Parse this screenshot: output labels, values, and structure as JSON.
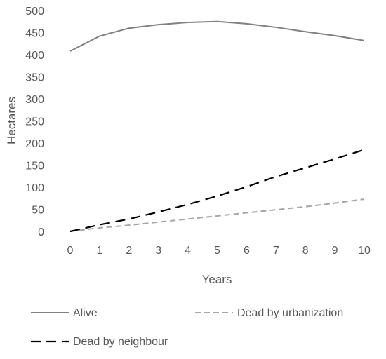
{
  "chart_data": {
    "type": "line",
    "title": "",
    "xlabel": "Years",
    "ylabel": "Hectares",
    "x": [
      0,
      1,
      2,
      3,
      4,
      5,
      6,
      7,
      8,
      9,
      10
    ],
    "xlim": [
      0,
      10
    ],
    "ylim": [
      0,
      500
    ],
    "yticks": [
      0,
      50,
      100,
      150,
      200,
      250,
      300,
      350,
      400,
      450,
      500
    ],
    "grid": false,
    "legend_position": "bottom",
    "series": [
      {
        "name": "Alive",
        "style": "solid",
        "color": "#808080",
        "values": [
          408,
          442,
          460,
          468,
          473,
          475,
          470,
          462,
          452,
          443,
          432
        ]
      },
      {
        "name": "Dead by urbanization",
        "style": "dashed",
        "color": "#a6a6a6",
        "values": [
          0,
          8,
          14,
          21,
          28,
          35,
          42,
          49,
          56,
          64,
          73
        ]
      },
      {
        "name": "Dead by neighbour",
        "style": "long-dash",
        "color": "#000000",
        "values": [
          0,
          15,
          28,
          44,
          61,
          80,
          101,
          124,
          144,
          164,
          185
        ]
      }
    ]
  }
}
